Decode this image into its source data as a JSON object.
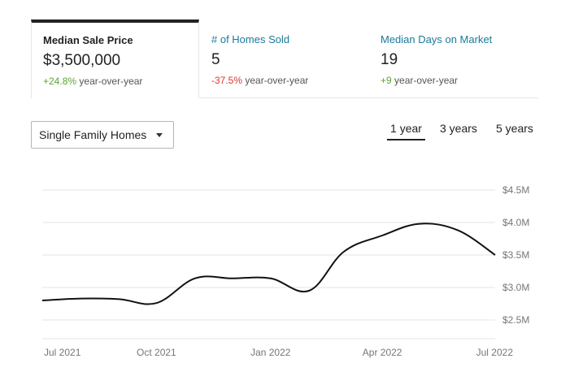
{
  "tabs": [
    {
      "label": "Median Sale Price",
      "value": "$3,500,000",
      "change": "+24.8%",
      "change_suffix": "year-over-year",
      "change_direction": "up",
      "active": true
    },
    {
      "label": "# of Homes Sold",
      "value": "5",
      "change": "-37.5%",
      "change_suffix": "year-over-year",
      "change_direction": "down",
      "active": false
    },
    {
      "label": "Median Days on Market",
      "value": "19",
      "change": "+9",
      "change_suffix": "year-over-year",
      "change_direction": "up",
      "active": false
    }
  ],
  "property_type": {
    "selected": "Single Family Homes"
  },
  "time_ranges": [
    {
      "label": "1 year",
      "active": true
    },
    {
      "label": "3 years",
      "active": false
    },
    {
      "label": "5 years",
      "active": false
    }
  ],
  "colors": {
    "link": "#1a7a9c",
    "positive": "#5aa531",
    "negative": "#e0352b",
    "line": "#111111",
    "grid": "#e3e3e3"
  },
  "chart_data": {
    "type": "line",
    "title": "",
    "xlabel": "",
    "ylabel": "",
    "x": [
      "2021-07-01",
      "2021-08-01",
      "2021-09-01",
      "2021-10-01",
      "2021-11-01",
      "2021-12-01",
      "2022-01-01",
      "2022-02-01",
      "2022-03-01",
      "2022-04-01",
      "2022-05-01",
      "2022-06-01",
      "2022-07-01"
    ],
    "y": [
      2.8,
      2.83,
      2.82,
      2.76,
      3.14,
      3.14,
      3.14,
      2.95,
      3.55,
      3.8,
      3.98,
      3.88,
      3.5
    ],
    "y_unit": "millions USD",
    "ylim": [
      2.3,
      4.5
    ],
    "y_ticks": [
      {
        "value": 4.5,
        "label": "$4.5M"
      },
      {
        "value": 4.0,
        "label": "$4.0M"
      },
      {
        "value": 3.5,
        "label": "$3.5M"
      },
      {
        "value": 3.0,
        "label": "$3.0M"
      },
      {
        "value": 2.5,
        "label": "$2.5M"
      }
    ],
    "x_ticks": [
      {
        "value": "2021-07-01",
        "label": "Jul 2021"
      },
      {
        "value": "2021-10-01",
        "label": "Oct 2021"
      },
      {
        "value": "2022-01-01",
        "label": "Jan 2022"
      },
      {
        "value": "2022-04-01",
        "label": "Apr 2022"
      },
      {
        "value": "2022-07-01",
        "label": "Jul 2022"
      }
    ],
    "grid": true,
    "y_axis_side": "right"
  }
}
